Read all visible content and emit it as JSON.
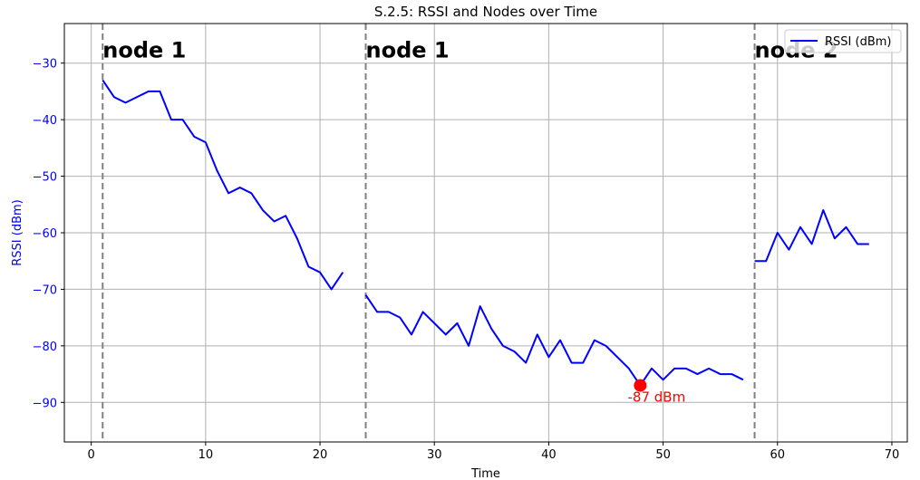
{
  "chart_data": {
    "type": "line",
    "title": "S.2.5: RSSI and Nodes over Time",
    "xlabel": "Time",
    "ylabel": "RSSI (dBm)",
    "xlim": [
      -2.35,
      71.35
    ],
    "ylim": [
      -97,
      -23
    ],
    "xticks": [
      0,
      10,
      20,
      30,
      40,
      50,
      60,
      70
    ],
    "yticks": [
      -90,
      -80,
      -70,
      -60,
      -50,
      -40,
      -30
    ],
    "grid": true,
    "legend_position": "upper right",
    "colors": {
      "series": "#0000ff",
      "ylabel": "#0000ff",
      "ytick": "#0000ff",
      "marker": "#ff0000",
      "vline": "#808080",
      "grid": "#b0b0b0"
    },
    "series": [
      {
        "name": "RSSI (dBm)",
        "segments": [
          {
            "x": [
              1,
              2,
              3,
              4,
              5,
              6,
              7,
              8,
              9,
              10,
              11,
              12,
              13,
              14,
              15,
              16,
              17,
              18,
              19,
              20,
              21,
              22
            ],
            "y": [
              -33,
              -36,
              -37,
              -36,
              -35,
              -35,
              -40,
              -40,
              -43,
              -44,
              -49,
              -53,
              -52,
              -53,
              -56,
              -58,
              -57,
              -61,
              -66,
              -67,
              -70,
              -67
            ]
          },
          {
            "x": [
              24,
              25,
              26,
              27,
              28,
              29,
              30,
              31,
              32,
              33,
              34,
              35,
              36,
              37,
              38,
              39,
              40,
              41,
              42,
              43,
              44,
              45,
              46,
              47,
              48,
              49,
              50,
              51,
              52,
              53,
              54,
              55,
              56,
              57
            ],
            "y": [
              -71,
              -74,
              -74,
              -75,
              -78,
              -74,
              -76,
              -78,
              -76,
              -80,
              -73,
              -77,
              -80,
              -81,
              -83,
              -78,
              -82,
              -79,
              -83,
              -83,
              -79,
              -80,
              -82,
              -84,
              -87,
              -84,
              -86,
              -84,
              -84,
              -85,
              -84,
              -85,
              -85,
              -86
            ]
          },
          {
            "x": [
              58,
              59,
              60,
              61,
              62,
              63,
              64,
              65,
              66,
              67,
              68
            ],
            "y": [
              -65,
              -65,
              -60,
              -63,
              -59,
              -62,
              -56,
              -61,
              -59,
              -62,
              -62
            ]
          }
        ]
      }
    ],
    "vlines": [
      1,
      24,
      58
    ],
    "node_labels": [
      {
        "x": 1,
        "y": -29,
        "text": "node 1"
      },
      {
        "x": 24,
        "y": -29,
        "text": "node 1"
      },
      {
        "x": 58,
        "y": -29,
        "text": "node 2"
      }
    ],
    "min_marker": {
      "x": 48,
      "y": -87,
      "label": "-87 dBm"
    }
  }
}
